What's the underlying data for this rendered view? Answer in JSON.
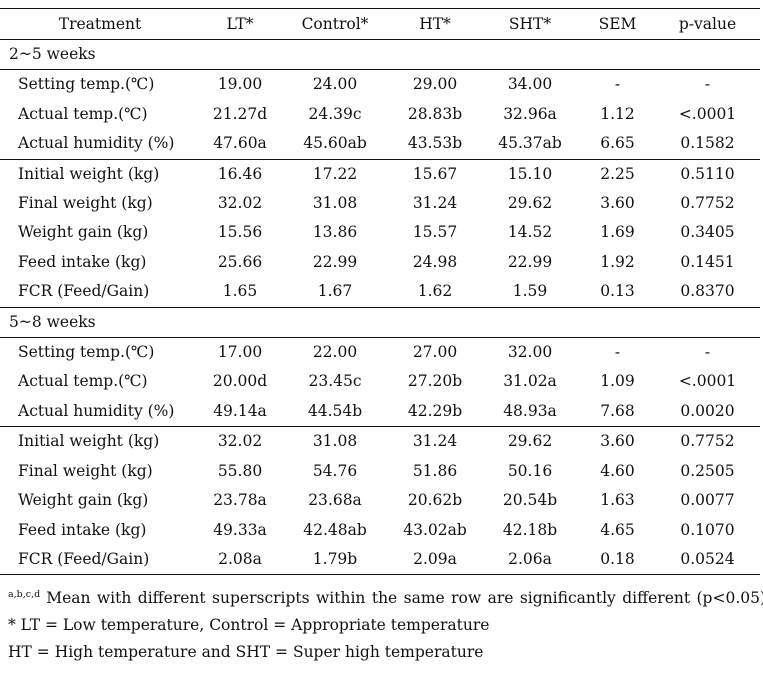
{
  "columns": [
    "Treatment",
    "LT*",
    "Control*",
    "HT*",
    "SHT*",
    "SEM",
    "p-value"
  ],
  "sections": [
    {
      "title": "2~5 weeks",
      "groups": [
        [
          {
            "label": "Setting temp.(℃)",
            "values": [
              "19.00",
              "24.00",
              "29.00",
              "34.00",
              "-",
              "-"
            ]
          },
          {
            "label": "Actual temp.(℃)",
            "values": [
              "21.27d",
              "24.39c",
              "28.83b",
              "32.96a",
              "1.12",
              "<.0001"
            ]
          },
          {
            "label": "Actual humidity (%)",
            "values": [
              "47.60a",
              "45.60ab",
              "43.53b",
              "45.37ab",
              "6.65",
              "0.1582"
            ]
          }
        ],
        [
          {
            "label": "Initial weight (kg)",
            "values": [
              "16.46",
              "17.22",
              "15.67",
              "15.10",
              "2.25",
              "0.5110"
            ]
          },
          {
            "label": "Final weight (kg)",
            "values": [
              "32.02",
              "31.08",
              "31.24",
              "29.62",
              "3.60",
              "0.7752"
            ]
          },
          {
            "label": "Weight gain (kg)",
            "values": [
              "15.56",
              "13.86",
              "15.57",
              "14.52",
              "1.69",
              "0.3405"
            ]
          },
          {
            "label": "Feed intake (kg)",
            "values": [
              "25.66",
              "22.99",
              "24.98",
              "22.99",
              "1.92",
              "0.1451"
            ]
          },
          {
            "label": "FCR (Feed/Gain)",
            "values": [
              "1.65",
              "1.67",
              "1.62",
              "1.59",
              "0.13",
              "0.8370"
            ]
          }
        ]
      ]
    },
    {
      "title": "5~8 weeks",
      "groups": [
        [
          {
            "label": "Setting temp.(℃)",
            "values": [
              "17.00",
              "22.00",
              "27.00",
              "32.00",
              "-",
              "-"
            ]
          },
          {
            "label": "Actual temp.(℃)",
            "values": [
              "20.00d",
              "23.45c",
              "27.20b",
              "31.02a",
              "1.09",
              "<.0001"
            ]
          },
          {
            "label": "Actual humidity (%)",
            "values": [
              "49.14a",
              "44.54b",
              "42.29b",
              "48.93a",
              "7.68",
              "0.0020"
            ]
          }
        ],
        [
          {
            "label": "Initial weight (kg)",
            "values": [
              "32.02",
              "31.08",
              "31.24",
              "29.62",
              "3.60",
              "0.7752"
            ]
          },
          {
            "label": "Final weight (kg)",
            "values": [
              "55.80",
              "54.76",
              "51.86",
              "50.16",
              "4.60",
              "0.2505"
            ]
          },
          {
            "label": "Weight gain (kg)",
            "values": [
              "23.78a",
              "23.68a",
              "20.62b",
              "20.54b",
              "1.63",
              "0.0077"
            ]
          },
          {
            "label": "Feed intake (kg)",
            "values": [
              "49.33a",
              "42.48ab",
              "43.02ab",
              "42.18b",
              "4.65",
              "0.1070"
            ]
          },
          {
            "label": "FCR (Feed/Gain)",
            "values": [
              "2.08a",
              "1.79b",
              "2.09a",
              "2.06a",
              "0.18",
              "0.0524"
            ]
          }
        ]
      ]
    }
  ],
  "footnotes": {
    "superscript": "a,b,c,d",
    "significance": "Mean with different superscripts within the same row are significantly different (p<0.05)",
    "abbrev_1": "* LT = Low temperature, Control = Appropriate temperature",
    "abbrev_2": "HT = High temperature and SHT = Super high temperature"
  }
}
